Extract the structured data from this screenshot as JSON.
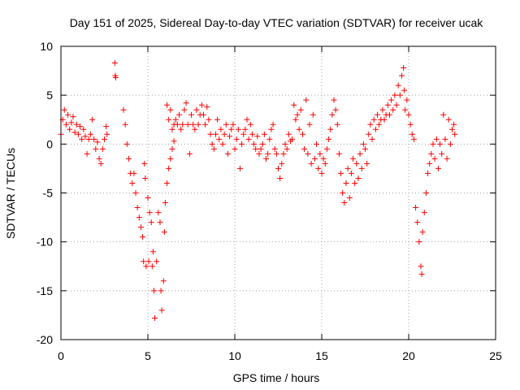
{
  "chart_data": {
    "type": "scatter",
    "title": "Day 151 of 2025, Sidereal Day-to-day VTEC variation (SDTVAR) for receiver ucak",
    "xlabel": "GPS time / hours",
    "ylabel": "SDTVAR / TECUs",
    "xlim": [
      0,
      25
    ],
    "ylim": [
      -20,
      10
    ],
    "xticks": [
      0,
      5,
      10,
      15,
      20,
      25
    ],
    "yticks": [
      -20,
      -15,
      -10,
      -5,
      0,
      5,
      10
    ],
    "grid": true,
    "marker": "+",
    "marker_color": "#ff0000",
    "series": [
      {
        "name": "SDTVAR",
        "points": [
          [
            0.0,
            1.0
          ],
          [
            0.1,
            2.5
          ],
          [
            0.2,
            3.5
          ],
          [
            0.3,
            2.0
          ],
          [
            0.4,
            3.0
          ],
          [
            0.5,
            1.5
          ],
          [
            0.6,
            2.2
          ],
          [
            0.7,
            2.8
          ],
          [
            0.8,
            1.2
          ],
          [
            0.9,
            2.0
          ],
          [
            1.0,
            1.0
          ],
          [
            1.1,
            1.8
          ],
          [
            1.2,
            0.5
          ],
          [
            1.3,
            1.5
          ],
          [
            1.4,
            0.8
          ],
          [
            1.5,
            -1.0
          ],
          [
            1.6,
            0.5
          ],
          [
            1.7,
            1.0
          ],
          [
            1.8,
            2.5
          ],
          [
            1.9,
            0.5
          ],
          [
            2.0,
            -0.5
          ],
          [
            2.1,
            0.2
          ],
          [
            2.2,
            -1.5
          ],
          [
            2.3,
            -2.0
          ],
          [
            2.4,
            -0.5
          ],
          [
            2.5,
            0.5
          ],
          [
            2.6,
            1.8
          ],
          [
            2.65,
            1.0
          ],
          [
            3.1,
            8.3
          ],
          [
            3.12,
            7.0
          ],
          [
            3.15,
            6.8
          ],
          [
            3.6,
            3.5
          ],
          [
            3.7,
            2.0
          ],
          [
            3.8,
            0.0
          ],
          [
            3.9,
            -1.5
          ],
          [
            4.0,
            -3.0
          ],
          [
            4.1,
            -4.0
          ],
          [
            4.2,
            -3.0
          ],
          [
            4.3,
            -5.0
          ],
          [
            4.4,
            -6.5
          ],
          [
            4.5,
            -7.5
          ],
          [
            4.6,
            -8.5
          ],
          [
            4.7,
            -9.5
          ],
          [
            4.75,
            -12.0
          ],
          [
            4.8,
            -2.0
          ],
          [
            4.85,
            -3.5
          ],
          [
            4.9,
            -12.5
          ],
          [
            5.0,
            -5.5
          ],
          [
            5.05,
            -12.0
          ],
          [
            5.1,
            -7.0
          ],
          [
            5.2,
            -8.0
          ],
          [
            5.25,
            -12.5
          ],
          [
            5.3,
            -11.0
          ],
          [
            5.35,
            -15.0
          ],
          [
            5.4,
            -17.8
          ],
          [
            5.5,
            -12.0
          ],
          [
            5.6,
            -7.0
          ],
          [
            5.7,
            -8.0
          ],
          [
            5.75,
            -15.0
          ],
          [
            5.8,
            -17.0
          ],
          [
            5.9,
            -14.0
          ],
          [
            5.95,
            -9.0
          ],
          [
            6.0,
            -6.0
          ],
          [
            6.1,
            -4.0
          ],
          [
            6.2,
            -2.5
          ],
          [
            6.3,
            -1.5
          ],
          [
            6.4,
            -0.5
          ],
          [
            6.5,
            0.3
          ],
          [
            6.1,
            4.0
          ],
          [
            6.2,
            2.5
          ],
          [
            6.3,
            3.5
          ],
          [
            6.4,
            1.5
          ],
          [
            6.5,
            2.0
          ],
          [
            6.6,
            2.5
          ],
          [
            6.7,
            2.0
          ],
          [
            6.8,
            3.0
          ],
          [
            6.9,
            1.5
          ],
          [
            7.0,
            2.0
          ],
          [
            7.1,
            3.5
          ],
          [
            7.2,
            4.2
          ],
          [
            7.3,
            2.0
          ],
          [
            7.4,
            -1.0
          ],
          [
            7.5,
            3.0
          ],
          [
            7.6,
            2.0
          ],
          [
            7.7,
            1.5
          ],
          [
            7.8,
            3.5
          ],
          [
            7.9,
            2.0
          ],
          [
            8.0,
            3.0
          ],
          [
            8.1,
            4.0
          ],
          [
            8.2,
            3.0
          ],
          [
            8.3,
            2.0
          ],
          [
            8.4,
            3.8
          ],
          [
            8.5,
            2.5
          ],
          [
            8.6,
            1.0
          ],
          [
            8.7,
            0.0
          ],
          [
            8.8,
            -0.5
          ],
          [
            8.9,
            1.0
          ],
          [
            9.0,
            2.5
          ],
          [
            9.1,
            0.5
          ],
          [
            9.2,
            1.5
          ],
          [
            9.3,
            0.0
          ],
          [
            9.4,
            1.0
          ],
          [
            9.5,
            2.0
          ],
          [
            9.6,
            -1.0
          ],
          [
            9.7,
            0.8
          ],
          [
            9.8,
            1.5
          ],
          [
            9.9,
            2.0
          ],
          [
            10.0,
            -0.5
          ],
          [
            10.1,
            0.5
          ],
          [
            10.2,
            1.5
          ],
          [
            10.3,
            -2.5
          ],
          [
            10.4,
            0.0
          ],
          [
            10.5,
            1.0
          ],
          [
            10.6,
            1.5
          ],
          [
            10.7,
            2.5
          ],
          [
            10.8,
            0.5
          ],
          [
            10.9,
            2.0
          ],
          [
            11.0,
            1.0
          ],
          [
            11.1,
            0.0
          ],
          [
            11.2,
            -0.5
          ],
          [
            11.3,
            0.8
          ],
          [
            11.4,
            -1.0
          ],
          [
            11.5,
            -0.5
          ],
          [
            11.6,
            0.0
          ],
          [
            11.7,
            1.0
          ],
          [
            11.8,
            -1.5
          ],
          [
            11.9,
            -1.0
          ],
          [
            12.0,
            0.5
          ],
          [
            12.1,
            1.5
          ],
          [
            12.2,
            2.0
          ],
          [
            12.3,
            -0.5
          ],
          [
            12.4,
            -1.0
          ],
          [
            12.5,
            -2.5
          ],
          [
            12.6,
            -3.5
          ],
          [
            12.7,
            -2.0
          ],
          [
            12.8,
            -1.0
          ],
          [
            12.9,
            0.0
          ],
          [
            13.0,
            -0.5
          ],
          [
            13.1,
            1.0
          ],
          [
            13.2,
            0.3
          ],
          [
            13.3,
            0.5
          ],
          [
            13.4,
            4.0
          ],
          [
            13.5,
            2.5
          ],
          [
            13.6,
            3.0
          ],
          [
            13.7,
            1.5
          ],
          [
            13.8,
            3.5
          ],
          [
            13.9,
            1.0
          ],
          [
            14.0,
            -0.5
          ],
          [
            14.1,
            4.5
          ],
          [
            14.2,
            -1.0
          ],
          [
            14.3,
            2.0
          ],
          [
            14.4,
            -2.0
          ],
          [
            14.5,
            3.0
          ],
          [
            14.6,
            -1.5
          ],
          [
            14.7,
            0.0
          ],
          [
            14.8,
            -2.5
          ],
          [
            14.9,
            -1.0
          ],
          [
            15.0,
            -3.0
          ],
          [
            15.1,
            -1.5
          ],
          [
            15.2,
            -2.0
          ],
          [
            15.3,
            -0.5
          ],
          [
            15.4,
            0.5
          ],
          [
            15.5,
            1.5
          ],
          [
            15.6,
            3.0
          ],
          [
            15.7,
            4.5
          ],
          [
            15.8,
            3.5
          ],
          [
            15.9,
            2.0
          ],
          [
            16.0,
            -1.0
          ],
          [
            16.1,
            -3.0
          ],
          [
            16.2,
            -5.0
          ],
          [
            16.3,
            -6.0
          ],
          [
            16.4,
            -4.0
          ],
          [
            16.5,
            -2.5
          ],
          [
            16.6,
            -5.5
          ],
          [
            16.7,
            -3.0
          ],
          [
            16.8,
            -1.5
          ],
          [
            16.9,
            -4.0
          ],
          [
            17.0,
            -2.0
          ],
          [
            17.1,
            -3.5
          ],
          [
            17.2,
            -1.0
          ],
          [
            17.3,
            -2.5
          ],
          [
            17.4,
            0.0
          ],
          [
            17.5,
            -0.5
          ],
          [
            17.6,
            -2.0
          ],
          [
            17.7,
            1.0
          ],
          [
            17.8,
            2.0
          ],
          [
            17.9,
            0.5
          ],
          [
            18.0,
            2.5
          ],
          [
            18.1,
            1.5
          ],
          [
            18.2,
            3.0
          ],
          [
            18.3,
            2.0
          ],
          [
            18.4,
            2.5
          ],
          [
            18.5,
            3.5
          ],
          [
            18.6,
            2.5
          ],
          [
            18.7,
            3.0
          ],
          [
            18.8,
            4.0
          ],
          [
            18.9,
            3.0
          ],
          [
            19.0,
            4.5
          ],
          [
            19.1,
            3.5
          ],
          [
            19.2,
            5.0
          ],
          [
            19.3,
            4.0
          ],
          [
            19.4,
            6.0
          ],
          [
            19.5,
            5.0
          ],
          [
            19.6,
            7.0
          ],
          [
            19.7,
            7.8
          ],
          [
            19.75,
            5.5
          ],
          [
            19.8,
            3.5
          ],
          [
            19.9,
            4.5
          ],
          [
            20.0,
            3.0
          ],
          [
            20.1,
            2.0
          ],
          [
            20.2,
            1.0
          ],
          [
            20.3,
            0.5
          ],
          [
            20.4,
            -6.5
          ],
          [
            20.5,
            -8.0
          ],
          [
            20.6,
            -10.0
          ],
          [
            20.7,
            -12.5
          ],
          [
            20.75,
            -13.3
          ],
          [
            20.8,
            -9.0
          ],
          [
            20.9,
            -7.0
          ],
          [
            21.0,
            -5.0
          ],
          [
            21.1,
            -3.0
          ],
          [
            21.2,
            -2.0
          ],
          [
            21.3,
            -1.0
          ],
          [
            21.4,
            0.0
          ],
          [
            21.5,
            -1.5
          ],
          [
            21.6,
            0.5
          ],
          [
            21.7,
            -2.5
          ],
          [
            21.8,
            0.0
          ],
          [
            21.9,
            -1.0
          ],
          [
            22.0,
            3.0
          ],
          [
            22.1,
            0.5
          ],
          [
            22.2,
            -1.5
          ],
          [
            22.3,
            2.5
          ],
          [
            22.4,
            0.0
          ],
          [
            22.5,
            1.5
          ],
          [
            22.6,
            2.0
          ],
          [
            22.65,
            1.0
          ]
        ]
      }
    ]
  }
}
